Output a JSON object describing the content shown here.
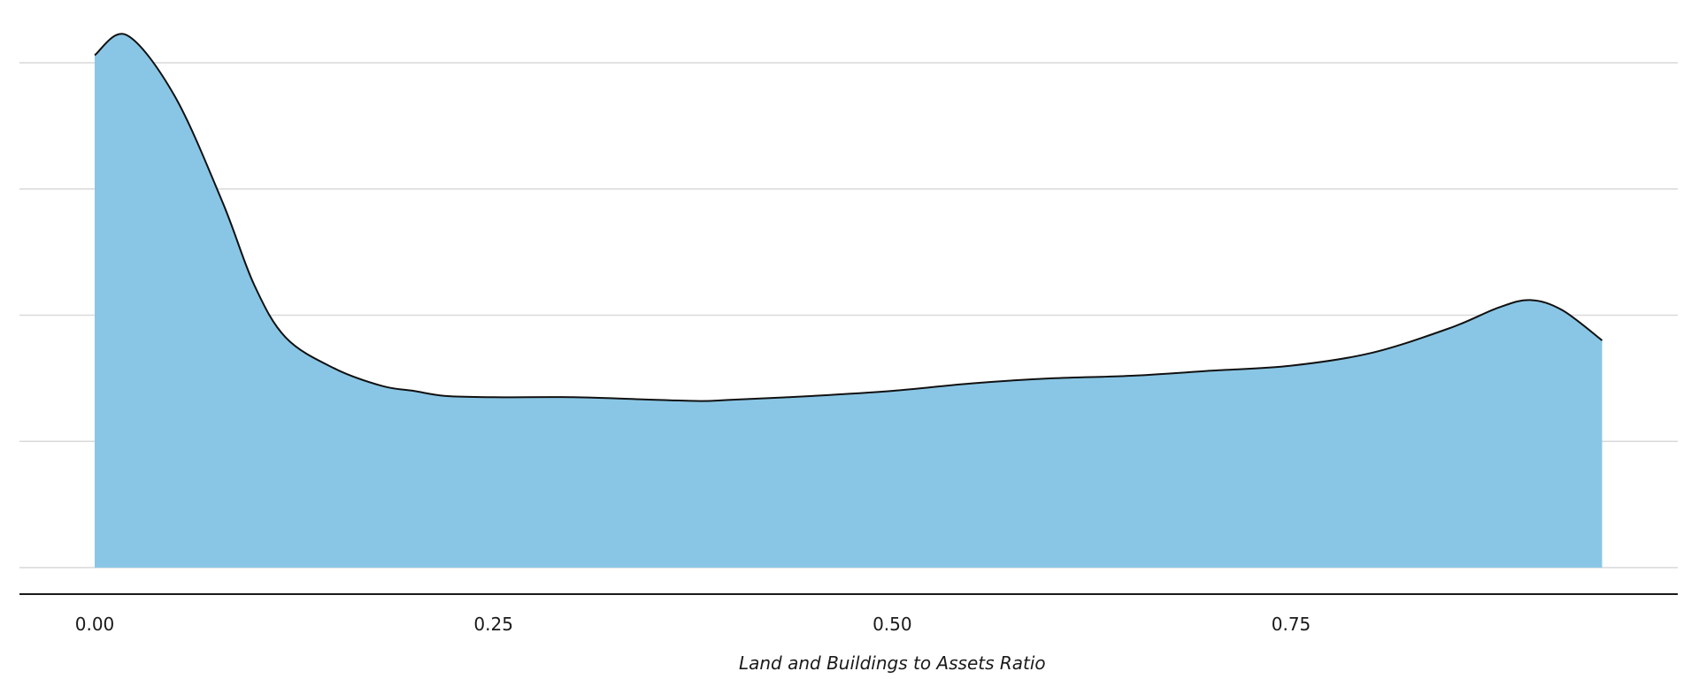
{
  "chart_data": {
    "type": "area",
    "title": "",
    "xlabel": "Land and Buildings to Assets Ratio",
    "ylabel": "",
    "xlim": [
      -0.05,
      0.99
    ],
    "ylim": [
      0,
      2.1
    ],
    "x_ticks": [
      0.0,
      0.25,
      0.5,
      0.75
    ],
    "x_tick_labels": [
      "0.00",
      "0.25",
      "0.50",
      "0.75"
    ],
    "y_gridlines": [
      0,
      0.5,
      1.0,
      1.5,
      2.0
    ],
    "show_y_tick_labels": false,
    "grid": "horizontal",
    "legend": "none",
    "fill_color": "#89c6e5",
    "line_color": "#111111",
    "series": [
      {
        "x": [
          0.0,
          0.02,
          0.05,
          0.08,
          0.1,
          0.12,
          0.15,
          0.18,
          0.2,
          0.22,
          0.25,
          0.3,
          0.35,
          0.38,
          0.4,
          0.45,
          0.5,
          0.55,
          0.6,
          0.65,
          0.7,
          0.75,
          0.8,
          0.85,
          0.88,
          0.9,
          0.92,
          0.945
        ],
        "y": [
          2.03,
          2.11,
          1.87,
          1.45,
          1.12,
          0.91,
          0.79,
          0.72,
          0.7,
          0.68,
          0.675,
          0.675,
          0.665,
          0.66,
          0.665,
          0.68,
          0.7,
          0.73,
          0.75,
          0.76,
          0.78,
          0.8,
          0.85,
          0.95,
          1.03,
          1.06,
          1.02,
          0.9
        ]
      }
    ]
  }
}
